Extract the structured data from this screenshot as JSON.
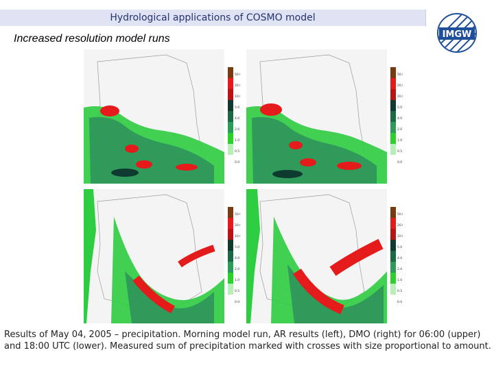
{
  "header": {
    "title": "Hydrological applications of COSMO model"
  },
  "logo": {
    "text": "IMGW"
  },
  "subtitle": "Increased resolution model runs",
  "legend": {
    "labels": [
      "50.0",
      "20.0",
      "10.0",
      "5.0",
      "4.0",
      "2.0",
      "1.0",
      "0.5",
      "0.0"
    ],
    "colors": [
      "#7a3a10",
      "#e51a1a",
      "#b71515",
      "#0f3a2f",
      "#1b6a45",
      "#2f9a5a",
      "#2ed02e",
      "#b8efb8",
      "#ffffff"
    ]
  },
  "panels": [
    {
      "name": "upper-left"
    },
    {
      "name": "upper-right"
    },
    {
      "name": "lower-left"
    },
    {
      "name": "lower-right"
    }
  ],
  "caption": "Results of May 04, 2005 – precipitation. Morning model run, AR results (left), DMO (right) for 06:00 (upper) and 18:00 UTC (lower). Measured sum of precipitation marked with crosses with size proportional to amount."
}
